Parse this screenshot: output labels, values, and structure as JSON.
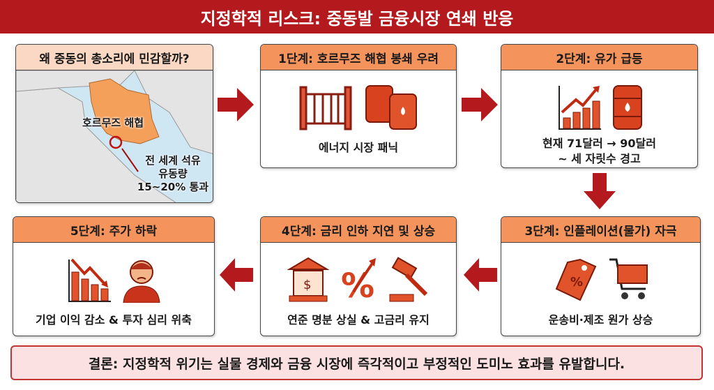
{
  "title": "지정학적 리스크: 중동발 금융시장 연쇄 반응",
  "map_panel": {
    "header": "왜 중동의 총소리에 민감할까?",
    "strait_label": "호르무즈 해협",
    "note_lines": [
      "전 세계 석유",
      "유동량",
      "15~20% 통과"
    ]
  },
  "stages": [
    {
      "header": "1단계: 호르무즈 해협 봉쇄 우려",
      "caption": [
        "에너지 시장 패닉"
      ],
      "icons": [
        "gate-icon",
        "oil-barrel-icon"
      ]
    },
    {
      "header": "2단계: 유가 급등",
      "caption": [
        "현재 71달러 → 90달러",
        "~ 세 자릿수 경고"
      ],
      "icons": [
        "rising-chart-icon",
        "oil-barrel-icon"
      ]
    },
    {
      "header": "3단계: 인플레이션(물가) 자극",
      "caption": [
        "운송비·제조 원가 상승"
      ],
      "icons": [
        "price-tag-icon",
        "shopping-cart-icon"
      ]
    },
    {
      "header": "4단계: 금리 인하 지연 및 상승",
      "caption": [
        "연준 명분 상실 & 고금리 유지"
      ],
      "icons": [
        "bank-icon",
        "percent-up-icon",
        "gavel-icon"
      ]
    },
    {
      "header": "5단계: 주가 하락",
      "caption": [
        "기업 이익 감소 & 투자 심리 위축"
      ],
      "icons": [
        "falling-chart-icon",
        "worried-person-icon"
      ]
    }
  ],
  "conclusion": "결론: 지정학적 위기는 실물 경제와 금융 시장에 즉각적이고 부정적인 도미노 효과를 유발합니다.",
  "colors": {
    "title_bg": "#b3191d",
    "header": "#f4935c",
    "arrow": "#b3191d",
    "conclusion_bg": "#fbe1e1"
  }
}
